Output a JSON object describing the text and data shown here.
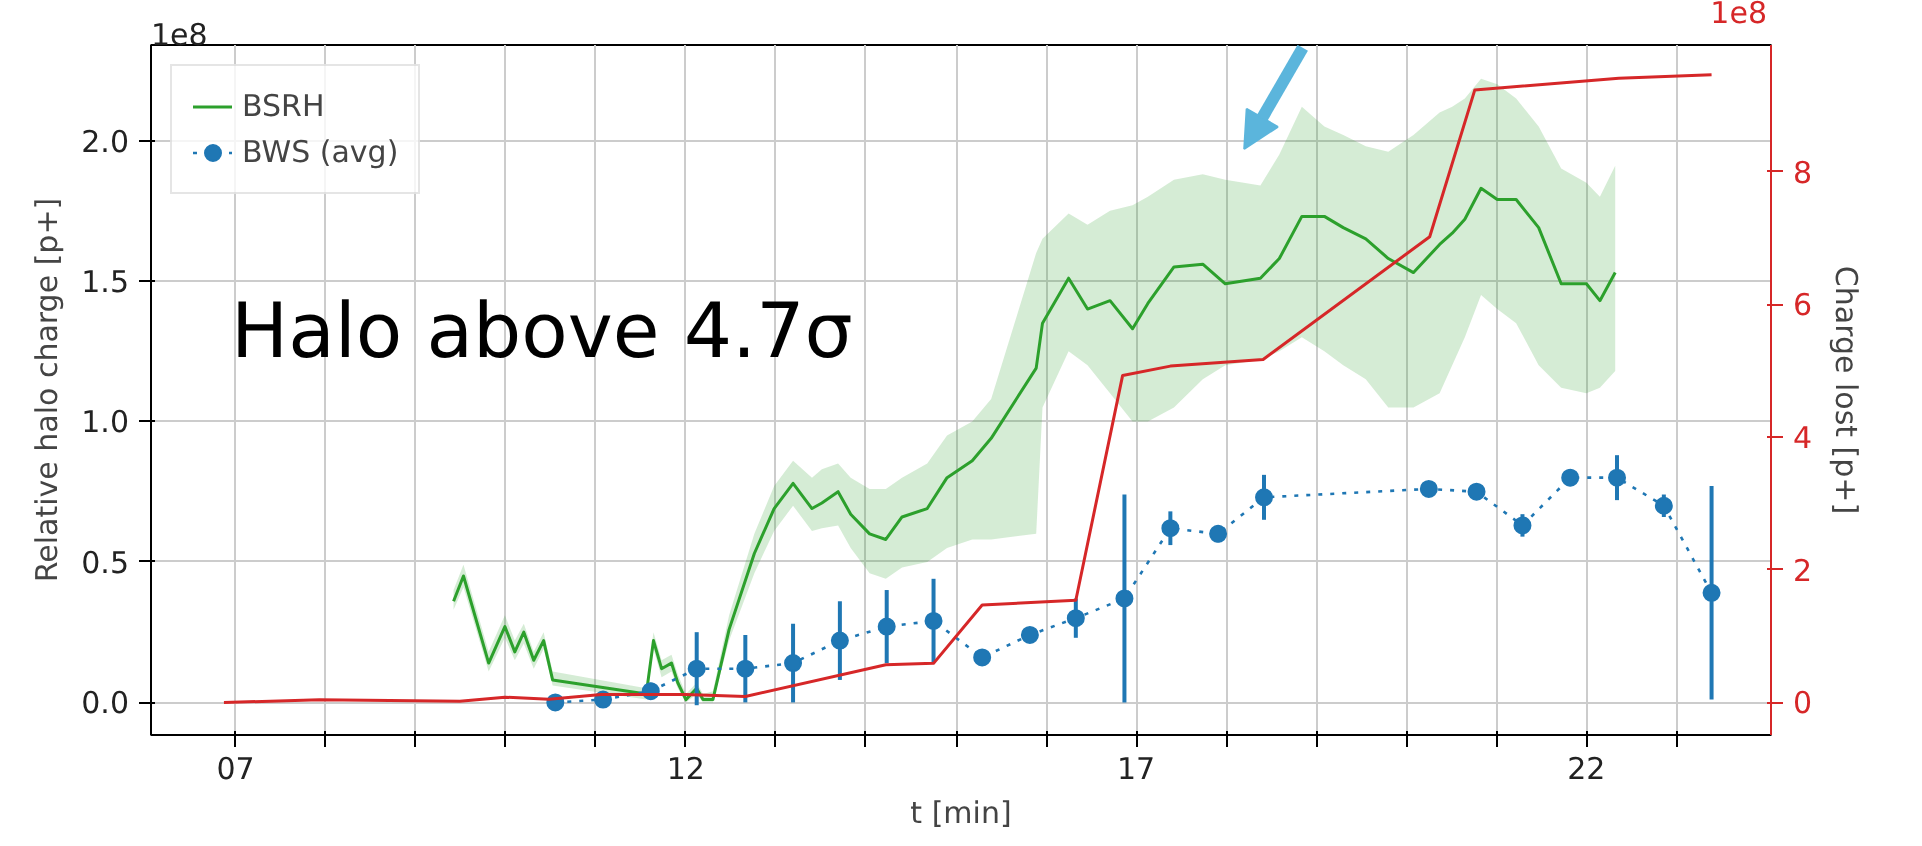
{
  "chart_data": {
    "type": "line",
    "xlabel": "t [min]",
    "ylabel": "Relative halo charge [p+]",
    "y2label": "Charge lost [p+]",
    "annotations": [
      "1e8",
      "1e8",
      "Halo above 4.7σ"
    ],
    "xlim": [
      6.06,
      24.05
    ],
    "xticks": [
      {
        "value": 7,
        "label": "07"
      },
      {
        "value": 8,
        "label": null
      },
      {
        "value": 9,
        "label": null
      },
      {
        "value": 10,
        "label": null
      },
      {
        "value": 11,
        "label": null
      },
      {
        "value": 12,
        "label": "12"
      },
      {
        "value": 13,
        "label": null
      },
      {
        "value": 14,
        "label": null
      },
      {
        "value": 15,
        "label": null
      },
      {
        "value": 16,
        "label": null
      },
      {
        "value": 17,
        "label": "17"
      },
      {
        "value": 18,
        "label": null
      },
      {
        "value": 19,
        "label": null
      },
      {
        "value": 20,
        "label": null
      },
      {
        "value": 21,
        "label": null
      },
      {
        "value": 22,
        "label": "22"
      },
      {
        "value": 23,
        "label": null
      }
    ],
    "ylim": [
      -0.116,
      2.34
    ],
    "yticks": [
      {
        "value": 0,
        "label": "0.0"
      },
      {
        "value": 0.5,
        "label": "0.5"
      },
      {
        "value": 1,
        "label": "1.0"
      },
      {
        "value": 1.5,
        "label": "1.5"
      },
      {
        "value": 2,
        "label": "2.0"
      }
    ],
    "y2lim": [
      -0.49,
      9.91
    ],
    "y2ticks": [
      0,
      2,
      4,
      6,
      8
    ],
    "grid": true,
    "legend": "top left",
    "series": [
      {
        "name": "BSRH",
        "color": "#2ca02c",
        "marker": "none",
        "line_style": "solid",
        "x": [
          9.42,
          9.53,
          9.81,
          9.99,
          10.1,
          10.2,
          10.31,
          10.42,
          10.52,
          11.56,
          11.64,
          11.73,
          11.84,
          11.91,
          12.0,
          12.12,
          12.19,
          12.3,
          12.48,
          12.76,
          12.98,
          13.19,
          13.4,
          13.51,
          13.69,
          13.83,
          14.04,
          14.22,
          14.4,
          14.68,
          14.9,
          15.18,
          15.39,
          15.89,
          15.96,
          16.25,
          16.46,
          16.71,
          16.96,
          17.13,
          17.42,
          17.74,
          17.99,
          18.38,
          18.59,
          18.84,
          19.09,
          19.3,
          19.55,
          19.8,
          20.08,
          20.37,
          20.51,
          20.65,
          20.83,
          21.01,
          21.22,
          21.47,
          21.72,
          22.0,
          22.15,
          22.32
        ],
        "values": [
          0.36,
          0.45,
          0.14,
          0.27,
          0.18,
          0.25,
          0.15,
          0.22,
          0.08,
          0.03,
          0.22,
          0.12,
          0.14,
          0.07,
          0.01,
          0.05,
          0.01,
          0.01,
          0.26,
          0.53,
          0.69,
          0.78,
          0.69,
          0.71,
          0.75,
          0.67,
          0.6,
          0.58,
          0.66,
          0.69,
          0.8,
          0.86,
          0.94,
          1.19,
          1.35,
          1.51,
          1.4,
          1.43,
          1.33,
          1.42,
          1.55,
          1.56,
          1.49,
          1.51,
          1.58,
          1.73,
          1.73,
          1.69,
          1.65,
          1.58,
          1.53,
          1.63,
          1.67,
          1.72,
          1.83,
          1.79,
          1.79,
          1.69,
          1.49,
          1.49,
          1.43,
          1.53
        ],
        "lower": [
          0.33,
          0.41,
          0.11,
          0.23,
          0.15,
          0.21,
          0.12,
          0.19,
          0.06,
          0.01,
          0.19,
          0.09,
          0.11,
          0.05,
          0,
          0.03,
          0,
          0,
          0.22,
          0.46,
          0.61,
          0.7,
          0.61,
          0.62,
          0.63,
          0.55,
          0.46,
          0.44,
          0.48,
          0.5,
          0.55,
          0.58,
          0.58,
          0.6,
          1.05,
          1.25,
          1.2,
          1.1,
          1.0,
          1.0,
          1.05,
          1.15,
          1.2,
          1.22,
          1.25,
          1.3,
          1.25,
          1.2,
          1.15,
          1.05,
          1.05,
          1.1,
          1.2,
          1.3,
          1.45,
          1.4,
          1.35,
          1.2,
          1.12,
          1.1,
          1.12,
          1.18
        ],
        "upper": [
          0.4,
          0.49,
          0.18,
          0.31,
          0.22,
          0.28,
          0.18,
          0.25,
          0.11,
          0.05,
          0.25,
          0.15,
          0.17,
          0.1,
          0.03,
          0.07,
          0.03,
          0.04,
          0.31,
          0.6,
          0.77,
          0.86,
          0.8,
          0.83,
          0.85,
          0.8,
          0.76,
          0.76,
          0.8,
          0.85,
          0.95,
          1.0,
          1.08,
          1.6,
          1.65,
          1.74,
          1.7,
          1.75,
          1.77,
          1.8,
          1.86,
          1.88,
          1.86,
          1.84,
          1.95,
          2.12,
          2.05,
          2.02,
          1.98,
          1.96,
          2.02,
          2.1,
          2.12,
          2.15,
          2.22,
          2.2,
          2.15,
          2.05,
          1.9,
          1.85,
          1.8,
          1.91
        ]
      },
      {
        "name": "BWS (avg)",
        "color": "#1f77b4",
        "marker": "circle",
        "line_style": "dotted",
        "x": [
          10.55,
          11.08,
          11.61,
          12.12,
          12.66,
          13.19,
          13.71,
          14.23,
          14.75,
          15.29,
          15.82,
          16.33,
          16.87,
          17.38,
          17.91,
          18.42,
          20.25,
          20.78,
          21.29,
          21.82,
          22.34,
          22.86,
          23.39
        ],
        "values": [
          0.0,
          0.01,
          0.04,
          0.12,
          0.12,
          0.14,
          0.22,
          0.27,
          0.29,
          0.16,
          0.24,
          0.3,
          0.37,
          0.62,
          0.6,
          0.73,
          0.76,
          0.75,
          0.63,
          0.8,
          0.8,
          0.7,
          0.39
        ],
        "errors": [
          null,
          null,
          0.03,
          0.13,
          0.12,
          0.14,
          0.14,
          0.13,
          0.15,
          0.03,
          null,
          0.07,
          0.37,
          0.06,
          0.03,
          0.08,
          0.02,
          0.02,
          0.04,
          0.03,
          0.08,
          0.04,
          0.38
        ]
      },
      {
        "color": "#d62728",
        "axis": "y2",
        "marker": "none",
        "line_style": "solid",
        "x": [
          6.87,
          7.93,
          9.49,
          9.99,
          10.48,
          11.06,
          12.0,
          12.66,
          14.22,
          14.75,
          15.29,
          16.33,
          16.85,
          17.38,
          18.41,
          20.26,
          20.76,
          22.36,
          23.39
        ],
        "values": [
          0,
          0.04,
          0.02,
          0.08,
          0.05,
          0.12,
          0.12,
          0.09,
          0.57,
          0.59,
          1.47,
          1.54,
          4.93,
          5.07,
          5.17,
          7.02,
          9.23,
          9.41,
          9.46
        ]
      }
    ]
  }
}
